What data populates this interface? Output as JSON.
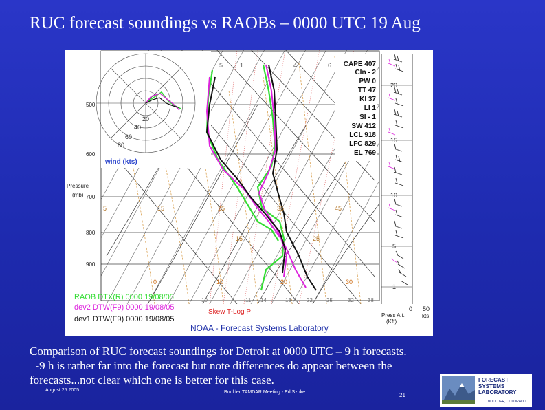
{
  "slide": {
    "title": "RUC forecast soundings vs RAOBs – 0000 UTC 19 Aug",
    "caption_lines": [
      "Comparison of RUC forecast soundings for Detroit at 0000 UTC – 9 h forecasts.",
      "  -9 h is rather far into the forecast but note differences do appear between the",
      "forecasts...not clear which one is better for this case."
    ],
    "footer_date": "August 25 2005",
    "footer_meeting": "Boulder TAMDAR Meeting - Ed Szoke",
    "page_number": "21"
  },
  "logo": {
    "lines": [
      "FORECAST",
      "SYSTEMS",
      "LABORATORY"
    ],
    "location": "BOULDER, COLORADO"
  },
  "sounding": {
    "stats": [
      "CAPE 407",
      "CIn - 2",
      "PW 0",
      "TT 47",
      "KI 37",
      "LI 1",
      "SI - 1",
      "SW 412",
      "LCL 918",
      "LFC 829",
      "EL 769"
    ],
    "pressure_labels": [
      "500",
      "600",
      "700",
      "800",
      "900"
    ],
    "pressure_axis_label": [
      "Pressure",
      "(mb)"
    ],
    "hodograph_labels": [
      "20",
      "40",
      "60",
      "80"
    ],
    "wind_label": "wind (kts)",
    "isotherm_labels_mid": [
      "5",
      "15",
      "25",
      "35",
      "45"
    ],
    "isotherm_labels_low": [
      "15",
      "25"
    ],
    "bottom_temp_labels": [
      "0",
      "10",
      "20",
      "30"
    ],
    "mixing_ratio_labels": [
      "10",
      "11",
      "14",
      "13",
      "22",
      "25",
      "32",
      "38"
    ],
    "adiabat_top_labels": [
      "5",
      "1",
      "4",
      "6"
    ],
    "legend": [
      {
        "text": "RAOB DTX(R) 0000 19/08/05",
        "color": "#33dd33"
      },
      {
        "text": "dev2 DTW(F9) 0000 19/08/05",
        "color": "#dd22dd"
      },
      {
        "text": "dev1 DTW(F9) 0000 19/08/05",
        "color": "#111111"
      }
    ],
    "skewt_label": "Skew T-Log P",
    "noaa_label": "NOAA - Forecast Systems Laboratory",
    "altitude_labels": [
      "20",
      "15",
      "10",
      "5",
      "1"
    ],
    "altitude_axis_label": [
      "Press Alt.",
      "(Kft)"
    ],
    "wind_scale_labels": [
      "0",
      "50"
    ],
    "wind_scale_unit": "kts"
  },
  "colors": {
    "background": "#1e2bb0",
    "raob": "#33dd33",
    "dev2": "#dd22dd",
    "dev1": "#111111",
    "isotherm": "#d9a050",
    "mixing_ratio": "#e06a6a",
    "grid": "#555555"
  }
}
